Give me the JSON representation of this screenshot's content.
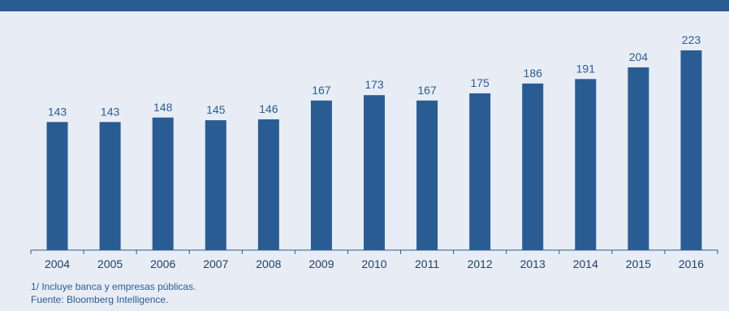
{
  "colors": {
    "header_band": "#2a5c94",
    "bar": "#2a5c94",
    "axis": "#2a5c94",
    "background": "#e8edf5"
  },
  "chart_data": {
    "type": "bar",
    "title": "",
    "xlabel": "",
    "ylabel": "",
    "categories": [
      "2004",
      "2005",
      "2006",
      "2007",
      "2008",
      "2009",
      "2010",
      "2011",
      "2012",
      "2013",
      "2014",
      "2015",
      "2016"
    ],
    "values": [
      143,
      143,
      148,
      145,
      146,
      167,
      173,
      167,
      175,
      186,
      191,
      204,
      223
    ],
    "ylim": [
      0,
      233
    ],
    "grid": false,
    "legend": "none",
    "data_labels": true
  },
  "footnotes": {
    "note": "1/ Incluye banca y empresas públicas.",
    "source": "Fuente: Bloomberg Intelligence."
  }
}
